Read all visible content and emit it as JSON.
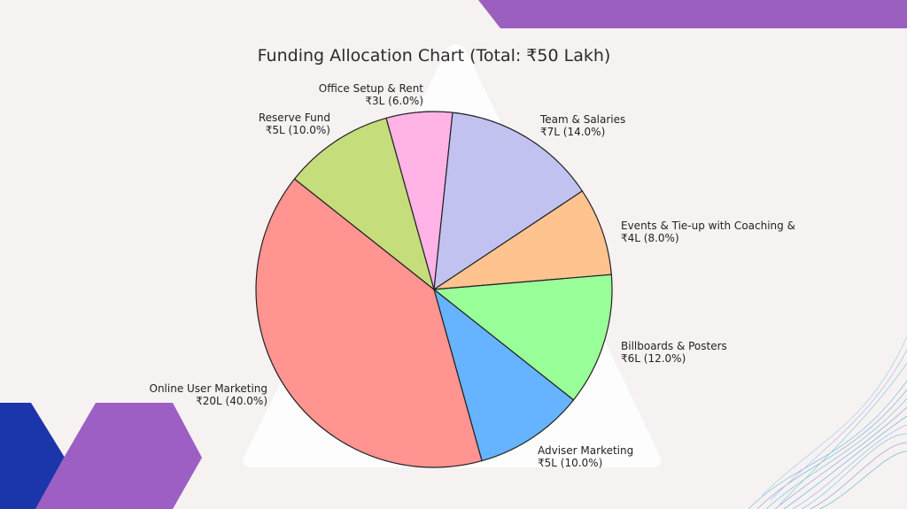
{
  "chart_data": {
    "type": "pie",
    "title": "Funding Allocation Chart (Total: ₹50 Lakh)",
    "slices": [
      {
        "name": "Office Setup & Rent",
        "value_text": "₹3L (6.0%)",
        "value": 3,
        "percent": 6.0,
        "color": "#ffb3e6"
      },
      {
        "name": "Team & Salaries",
        "value_text": "₹7L (14.0%)",
        "value": 7,
        "percent": 14.0,
        "color": "#c2c2f0"
      },
      {
        "name": "Events & Tie-up with Coaching &",
        "value_text": "₹4L (8.0%)",
        "value": 4,
        "percent": 8.0,
        "color": "#ffc38f"
      },
      {
        "name": "Billboards & Posters",
        "value_text": "₹6L (12.0%)",
        "value": 6,
        "percent": 12.0,
        "color": "#99ff99"
      },
      {
        "name": "Adviser Marketing",
        "value_text": "₹5L (10.0%)",
        "value": 5,
        "percent": 10.0,
        "color": "#66b3ff"
      },
      {
        "name": "Online User Marketing",
        "value_text": "₹20L (40.0%)",
        "value": 20,
        "percent": 40.0,
        "color": "#ff9490"
      },
      {
        "name": "Reserve Fund",
        "value_text": "₹5L (10.0%)",
        "value": 5,
        "percent": 10.0,
        "color": "#c5dd7a"
      }
    ]
  },
  "theme": {
    "background": "#f7f2f2",
    "accent_purple": "#9b59c0",
    "accent_blue": "#1b35ab"
  }
}
